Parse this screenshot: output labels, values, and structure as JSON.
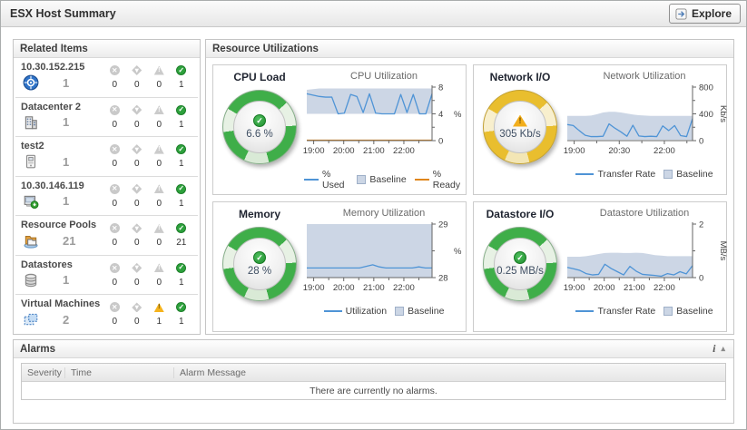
{
  "titlebar": {
    "title": "ESX Host Summary",
    "explore_label": "Explore"
  },
  "related_items": {
    "header": "Related Items",
    "items": [
      {
        "name": "10.30.152.215",
        "icon": "esx-host-target-icon",
        "count": "1",
        "fatal": "0",
        "critical": "0",
        "warning": "0",
        "normal": "1"
      },
      {
        "name": "Datacenter 2",
        "icon": "datacenter-icon",
        "count": "1",
        "fatal": "0",
        "critical": "0",
        "warning": "0",
        "normal": "1"
      },
      {
        "name": "test2",
        "icon": "host-system-icon",
        "count": "1",
        "fatal": "0",
        "critical": "0",
        "warning": "0",
        "normal": "1"
      },
      {
        "name": "10.30.146.119",
        "icon": "host-running-icon",
        "count": "1",
        "fatal": "0",
        "critical": "0",
        "warning": "0",
        "normal": "1"
      },
      {
        "name": "Resource Pools",
        "icon": "resource-pool-icon",
        "count": "21",
        "fatal": "0",
        "critical": "0",
        "warning": "0",
        "normal": "21"
      },
      {
        "name": "Datastores",
        "icon": "datastore-icon",
        "count": "1",
        "fatal": "0",
        "critical": "0",
        "warning": "0",
        "normal": "1"
      },
      {
        "name": "Virtual Machines",
        "icon": "virtual-machine-icon",
        "count": "2",
        "fatal": "0",
        "critical": "0",
        "warning": "1",
        "normal": "1"
      }
    ]
  },
  "resource_utilizations": {
    "header": "Resource Utilizations",
    "quadrants": [
      {
        "title": "CPU Load",
        "gauge_value": "6.6 %",
        "gauge_state": "normal"
      },
      {
        "title": "Network I/O",
        "gauge_value": "305 Kb/s",
        "gauge_state": "warning"
      },
      {
        "title": "Memory",
        "gauge_value": "28 %",
        "gauge_state": "normal"
      },
      {
        "title": "Datastore I/O",
        "gauge_value": "0.25 MB/s",
        "gauge_state": "normal"
      }
    ]
  },
  "alarms": {
    "header": "Alarms",
    "info_icon": "i",
    "collapse_icon": "▴",
    "columns": [
      "Severity",
      "Time",
      "Alarm Message"
    ],
    "empty_message": "There are currently no alarms."
  },
  "chart_data": [
    {
      "type": "line",
      "title": "CPU Utilization",
      "unit": "%",
      "unit_rotated": false,
      "ylim": [
        0,
        8
      ],
      "yticks": [
        {
          "v": 0,
          "label": "0"
        },
        {
          "v": 4,
          "label": "4"
        },
        {
          "v": 8,
          "label": "8"
        }
      ],
      "yminor": [
        2,
        6
      ],
      "xticks": [
        {
          "f": 0.055,
          "label": "19:00"
        },
        {
          "f": 0.295,
          "label": "20:00"
        },
        {
          "f": 0.535,
          "label": "21:00"
        },
        {
          "f": 0.775,
          "label": "22:00"
        }
      ],
      "xminor": [
        0.175,
        0.415,
        0.655,
        0.895
      ],
      "baseline": {
        "color": "#ccd6e5",
        "lower": 4.0,
        "upper": [
          7.6,
          7.7,
          7.8,
          7.8,
          7.8,
          7.8,
          7.8,
          7.8,
          7.8,
          7.8,
          7.8,
          7.8,
          7.8,
          7.8,
          7.8,
          7.8,
          7.8,
          7.8,
          7.8,
          7.8,
          7.8
        ]
      },
      "series": [
        {
          "name": "% Used",
          "color": "#4f94d6",
          "values": [
            7.0,
            6.8,
            6.6,
            6.5,
            6.5,
            4.0,
            4.1,
            6.9,
            6.6,
            4.2,
            7.0,
            4.1,
            4.0,
            4.0,
            4.0,
            6.9,
            4.2,
            6.9,
            4.0,
            4.0,
            7.0
          ]
        },
        {
          "name": "% Ready",
          "color": "#e0861a",
          "values": [
            0.06,
            0.06,
            0.06,
            0.06,
            0.06,
            0.06,
            0.06,
            0.06,
            0.06,
            0.06,
            0.06,
            0.06,
            0.06,
            0.06,
            0.06,
            0.06,
            0.06,
            0.06,
            0.06,
            0.06,
            0.06
          ]
        }
      ],
      "legend": [
        {
          "swatch": "line-blue",
          "label": "% Used"
        },
        {
          "swatch": "box",
          "label": "Baseline"
        },
        {
          "swatch": "line-orange",
          "label": "% Ready"
        }
      ]
    },
    {
      "type": "line",
      "title": "Network Utilization",
      "unit": "Kb/s",
      "unit_rotated": true,
      "ylim": [
        0,
        800
      ],
      "yticks": [
        {
          "v": 0,
          "label": "0"
        },
        {
          "v": 400,
          "label": "400"
        },
        {
          "v": 800,
          "label": "800"
        }
      ],
      "yminor": [
        200,
        600
      ],
      "xticks": [
        {
          "f": 0.055,
          "label": "19:00"
        },
        {
          "f": 0.415,
          "label": "20:30"
        },
        {
          "f": 0.775,
          "label": "22:00"
        }
      ],
      "xminor": [
        0.235,
        0.595,
        0.955
      ],
      "baseline": {
        "color": "#ccd6e5",
        "lower": 12,
        "upper": [
          370,
          370,
          370,
          370,
          375,
          395,
          420,
          430,
          430,
          420,
          405,
          390,
          380,
          375,
          370,
          370,
          370,
          370,
          370,
          370,
          370,
          370
        ]
      },
      "series": [
        {
          "name": "Transfer Rate",
          "color": "#4f94d6",
          "values": [
            240,
            225,
            150,
            80,
            60,
            60,
            65,
            250,
            185,
            130,
            65,
            230,
            70,
            60,
            65,
            60,
            220,
            150,
            225,
            75,
            60,
            330
          ]
        }
      ],
      "legend": [
        {
          "swatch": "line-blue",
          "label": "Transfer Rate"
        },
        {
          "swatch": "box",
          "label": "Baseline"
        }
      ]
    },
    {
      "type": "line",
      "title": "Memory Utilization",
      "unit": "%",
      "unit_rotated": false,
      "ylim": [
        28,
        29
      ],
      "yticks": [
        {
          "v": 28,
          "label": "28"
        },
        {
          "v": 29,
          "label": "29"
        }
      ],
      "yminor": [
        28.5
      ],
      "xticks": [
        {
          "f": 0.055,
          "label": "19:00"
        },
        {
          "f": 0.295,
          "label": "20:00"
        },
        {
          "f": 0.535,
          "label": "21:00"
        },
        {
          "f": 0.775,
          "label": "22:00"
        }
      ],
      "xminor": [
        0.175,
        0.415,
        0.655,
        0.895
      ],
      "baseline": {
        "color": "#ccd6e5",
        "lower": 28.0,
        "upper": [
          29,
          29,
          29,
          29,
          29,
          29,
          29,
          29,
          29,
          29,
          29,
          29,
          29,
          29,
          29,
          29,
          29,
          29,
          29,
          29
        ]
      },
      "series": [
        {
          "name": "Utilization",
          "color": "#4f94d6",
          "values": [
            28.18,
            28.18,
            28.18,
            28.18,
            28.18,
            28.18,
            28.18,
            28.18,
            28.18,
            28.21,
            28.24,
            28.2,
            28.18,
            28.18,
            28.18,
            28.18,
            28.18,
            28.2,
            28.18,
            28.18
          ]
        }
      ],
      "legend": [
        {
          "swatch": "line-blue",
          "label": "Utilization"
        },
        {
          "swatch": "box",
          "label": "Baseline"
        }
      ]
    },
    {
      "type": "line",
      "title": "Datastore Utilization",
      "unit": "MB/s",
      "unit_rotated": true,
      "ylim": [
        0,
        2
      ],
      "yticks": [
        {
          "v": 0,
          "label": "0"
        },
        {
          "v": 2,
          "label": "2"
        }
      ],
      "yminor": [
        1
      ],
      "xticks": [
        {
          "f": 0.055,
          "label": "19:00"
        },
        {
          "f": 0.295,
          "label": "20:00"
        },
        {
          "f": 0.535,
          "label": "21:00"
        },
        {
          "f": 0.775,
          "label": "22:00"
        }
      ],
      "xminor": [
        0.175,
        0.415,
        0.655,
        0.895
      ],
      "baseline": {
        "color": "#ccd6e5",
        "lower": 0.02,
        "upper": [
          0.78,
          0.78,
          0.78,
          0.8,
          0.84,
          0.88,
          0.92,
          0.93,
          0.93,
          0.92,
          0.92,
          0.93,
          0.92,
          0.88,
          0.84,
          0.82,
          0.8,
          0.8,
          0.8,
          0.8,
          0.8
        ]
      },
      "series": [
        {
          "name": "Transfer Rate",
          "color": "#4f94d6",
          "values": [
            0.38,
            0.33,
            0.27,
            0.15,
            0.1,
            0.12,
            0.5,
            0.34,
            0.22,
            0.1,
            0.42,
            0.24,
            0.12,
            0.1,
            0.08,
            0.05,
            0.15,
            0.1,
            0.22,
            0.14,
            0.45
          ]
        }
      ],
      "legend": [
        {
          "swatch": "line-blue",
          "label": "Transfer Rate"
        },
        {
          "swatch": "box",
          "label": "Baseline"
        }
      ]
    }
  ]
}
